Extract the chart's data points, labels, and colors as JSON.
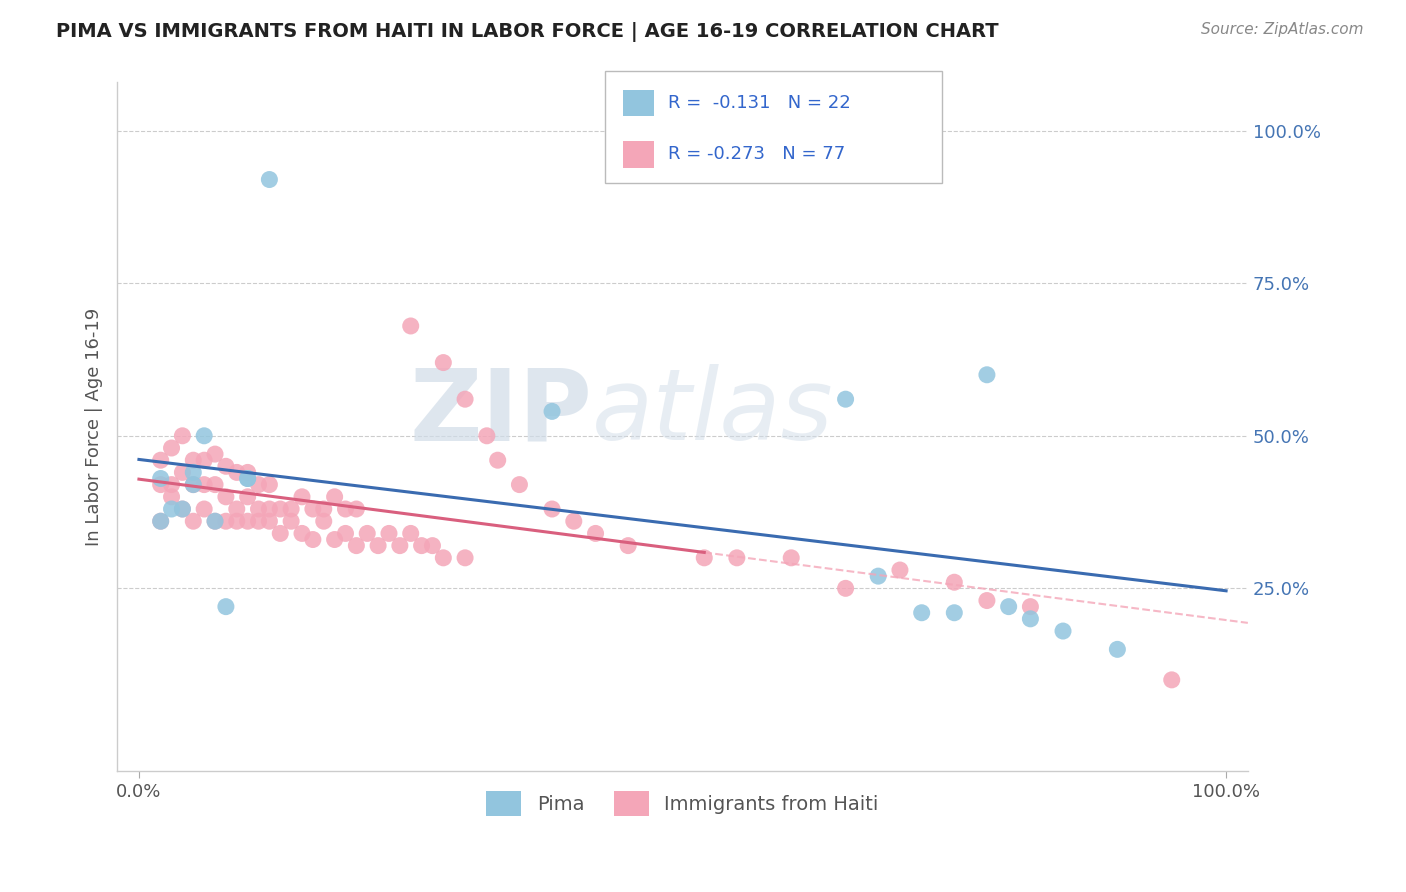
{
  "title": "PIMA VS IMMIGRANTS FROM HAITI IN LABOR FORCE | AGE 16-19 CORRELATION CHART",
  "source_text": "Source: ZipAtlas.com",
  "ylabel": "In Labor Force | Age 16-19",
  "xlim": [
    -0.02,
    1.02
  ],
  "ylim": [
    -0.05,
    1.08
  ],
  "x_tick_labels": [
    "0.0%",
    "100.0%"
  ],
  "x_tick_pos": [
    0.0,
    1.0
  ],
  "y_tick_labels_right": [
    "25.0%",
    "50.0%",
    "75.0%",
    "100.0%"
  ],
  "y_tick_positions_right": [
    0.25,
    0.5,
    0.75,
    1.0
  ],
  "pima_color": "#92C5DE",
  "haiti_color": "#F4A6B8",
  "pima_line_color": "#3A6BB0",
  "haiti_line_color": "#D95F7E",
  "haiti_dashed_color": "#F4A6B8",
  "legend_text_pima": "R =  -0.131   N = 22",
  "legend_text_haiti": "R = -0.273   N = 77",
  "legend_label_pima": "Pima",
  "legend_label_haiti": "Immigrants from Haiti",
  "watermark_zip": "ZIP",
  "watermark_atlas": "atlas",
  "background_color": "#FFFFFF",
  "grid_color": "#CCCCCC",
  "pima_x": [
    0.02,
    0.02,
    0.03,
    0.04,
    0.05,
    0.05,
    0.06,
    0.07,
    0.08,
    0.1,
    0.1,
    0.12,
    0.38,
    0.65,
    0.68,
    0.72,
    0.75,
    0.78,
    0.8,
    0.82,
    0.85,
    0.9
  ],
  "pima_y": [
    0.36,
    0.43,
    0.38,
    0.38,
    0.44,
    0.42,
    0.5,
    0.36,
    0.22,
    0.43,
    0.43,
    0.92,
    0.54,
    0.56,
    0.27,
    0.21,
    0.21,
    0.6,
    0.22,
    0.2,
    0.18,
    0.15
  ],
  "haiti_x": [
    0.02,
    0.02,
    0.03,
    0.03,
    0.04,
    0.04,
    0.05,
    0.05,
    0.06,
    0.06,
    0.07,
    0.07,
    0.08,
    0.08,
    0.09,
    0.09,
    0.1,
    0.1,
    0.11,
    0.11,
    0.12,
    0.12,
    0.13,
    0.14,
    0.15,
    0.16,
    0.17,
    0.18,
    0.19,
    0.2,
    0.02,
    0.03,
    0.04,
    0.05,
    0.06,
    0.07,
    0.08,
    0.09,
    0.1,
    0.11,
    0.12,
    0.13,
    0.14,
    0.15,
    0.16,
    0.17,
    0.18,
    0.19,
    0.2,
    0.21,
    0.22,
    0.23,
    0.24,
    0.25,
    0.26,
    0.27,
    0.28,
    0.3,
    0.25,
    0.28,
    0.3,
    0.32,
    0.33,
    0.35,
    0.38,
    0.4,
    0.42,
    0.45,
    0.52,
    0.55,
    0.6,
    0.65,
    0.7,
    0.75,
    0.78,
    0.82,
    0.95
  ],
  "haiti_y": [
    0.42,
    0.46,
    0.42,
    0.48,
    0.44,
    0.5,
    0.42,
    0.46,
    0.42,
    0.46,
    0.42,
    0.47,
    0.4,
    0.45,
    0.38,
    0.44,
    0.4,
    0.44,
    0.38,
    0.42,
    0.38,
    0.42,
    0.38,
    0.38,
    0.4,
    0.38,
    0.38,
    0.4,
    0.38,
    0.38,
    0.36,
    0.4,
    0.38,
    0.36,
    0.38,
    0.36,
    0.36,
    0.36,
    0.36,
    0.36,
    0.36,
    0.34,
    0.36,
    0.34,
    0.33,
    0.36,
    0.33,
    0.34,
    0.32,
    0.34,
    0.32,
    0.34,
    0.32,
    0.34,
    0.32,
    0.32,
    0.3,
    0.3,
    0.68,
    0.62,
    0.56,
    0.5,
    0.46,
    0.42,
    0.38,
    0.36,
    0.34,
    0.32,
    0.3,
    0.3,
    0.3,
    0.25,
    0.28,
    0.26,
    0.23,
    0.22,
    0.1
  ]
}
